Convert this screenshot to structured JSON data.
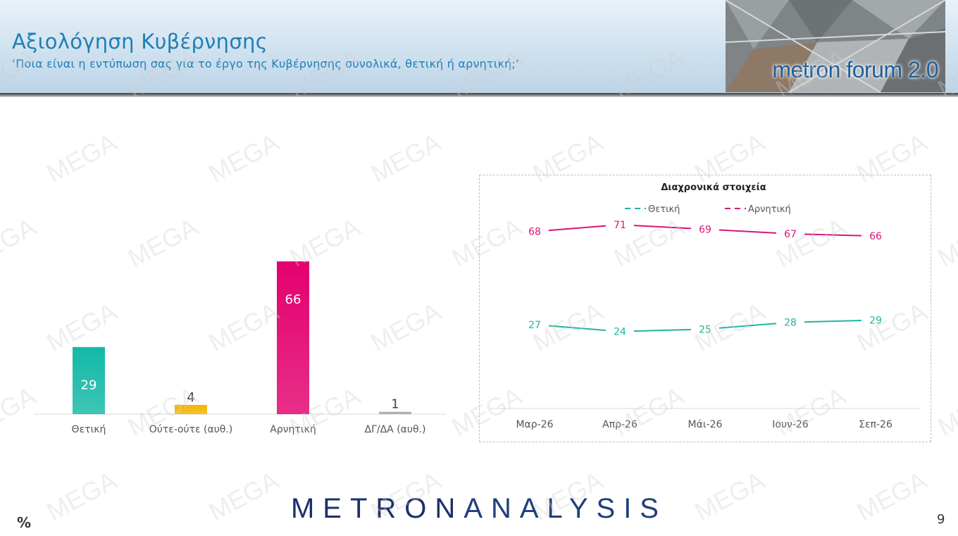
{
  "header": {
    "title": "Αξιολόγηση Κυβέρνησης",
    "subtitle": "‘Ποια είναι η εντύπωση σας για το έργο της Κυβέρνησης συνολικά, θετική ή αρνητική;’",
    "logo_text": "metron forum 2.0"
  },
  "colors": {
    "positive": "#14b8a6",
    "neutral": "#f5b400",
    "negative": "#e3006e",
    "dk": "#a8a8a8",
    "brand": "#1c2f6b"
  },
  "chart_data": [
    {
      "type": "bar",
      "categories": [
        "Θετική",
        "Ούτε-ούτε (αυθ.)",
        "Αρνητική",
        "ΔΓ/ΔΑ (αυθ.)"
      ],
      "values": [
        29,
        4,
        66,
        1
      ],
      "ylim": [
        0,
        70
      ],
      "grid": false,
      "legend": "none"
    },
    {
      "type": "line",
      "title": "Διαχρονικά στοιχεία",
      "categories": [
        "Μαρ-26",
        "Απρ-26",
        "Μάι-26",
        "Ιουν-26",
        "Σεπ-26"
      ],
      "series": [
        {
          "name": "Θετική",
          "values": [
            27,
            24,
            25,
            28,
            29
          ],
          "color": "#20b5a0"
        },
        {
          "name": "Αρνητική",
          "values": [
            68,
            71,
            69,
            67,
            66
          ],
          "color": "#d8157b"
        }
      ],
      "ylim": [
        0,
        80
      ],
      "grid": false,
      "legend": "top"
    }
  ],
  "footer": {
    "brand_left": "METRON",
    "brand_right": "ANALYSIS",
    "unit": "%",
    "page_number": "9"
  },
  "watermark": "MEGA"
}
